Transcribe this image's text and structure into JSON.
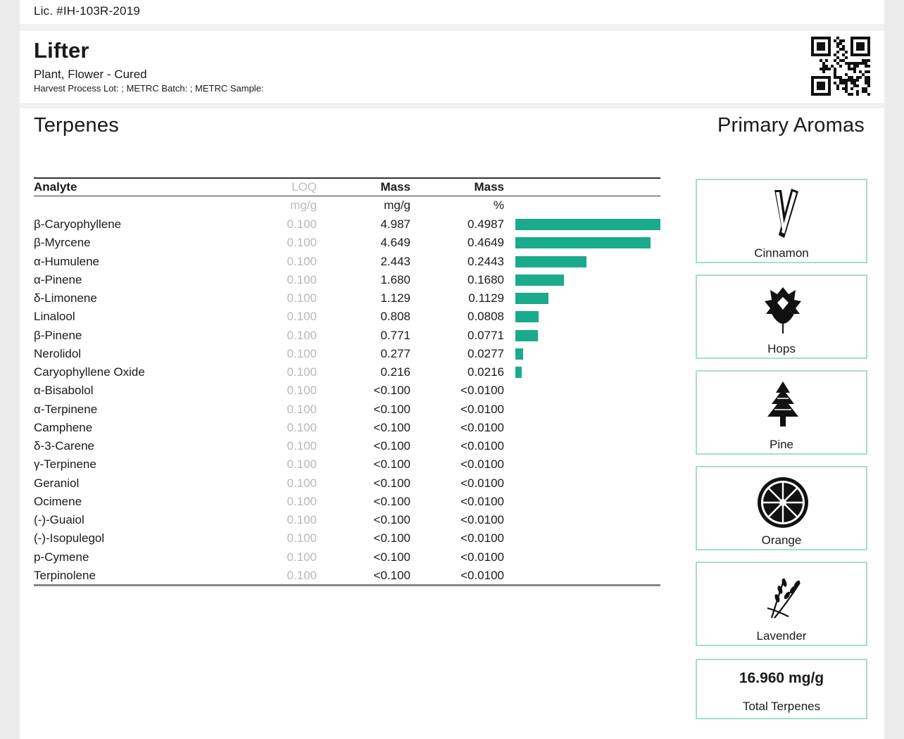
{
  "license": "Lic. #IH-103R-2019",
  "product": {
    "name": "Lifter",
    "type": "Plant, Flower - Cured",
    "lot_line": "Harvest Process Lot: ; METRC Batch: ; METRC Sample:"
  },
  "qr_icon": "qr-code",
  "terpenes": {
    "title": "Terpenes",
    "headers": {
      "analyte": "Analyte",
      "loq": "LOQ",
      "mass1": "Mass",
      "mass2": "Mass"
    },
    "units": {
      "loq": "mg/g",
      "mass1": "mg/g",
      "mass2": "%"
    },
    "bar_color": "#1aab8a",
    "rows": [
      {
        "name": "β-Caryophyllene",
        "loq": "0.100",
        "mg": "4.987",
        "pct": "0.4987",
        "fraction": 0.4987
      },
      {
        "name": "β-Myrcene",
        "loq": "0.100",
        "mg": "4.649",
        "pct": "0.4649",
        "fraction": 0.4649
      },
      {
        "name": "α-Humulene",
        "loq": "0.100",
        "mg": "2.443",
        "pct": "0.2443",
        "fraction": 0.2443
      },
      {
        "name": "α-Pinene",
        "loq": "0.100",
        "mg": "1.680",
        "pct": "0.1680",
        "fraction": 0.168
      },
      {
        "name": "δ-Limonene",
        "loq": "0.100",
        "mg": "1.129",
        "pct": "0.1129",
        "fraction": 0.1129
      },
      {
        "name": "Linalool",
        "loq": "0.100",
        "mg": "0.808",
        "pct": "0.0808",
        "fraction": 0.0808
      },
      {
        "name": "β-Pinene",
        "loq": "0.100",
        "mg": "0.771",
        "pct": "0.0771",
        "fraction": 0.0771
      },
      {
        "name": "Nerolidol",
        "loq": "0.100",
        "mg": "0.277",
        "pct": "0.0277",
        "fraction": 0.0277
      },
      {
        "name": "Caryophyllene Oxide",
        "loq": "0.100",
        "mg": "0.216",
        "pct": "0.0216",
        "fraction": 0.0216
      },
      {
        "name": "α-Bisabolol",
        "loq": "0.100",
        "mg": "<0.100",
        "pct": "<0.0100",
        "fraction": 0
      },
      {
        "name": "α-Terpinene",
        "loq": "0.100",
        "mg": "<0.100",
        "pct": "<0.0100",
        "fraction": 0
      },
      {
        "name": "Camphene",
        "loq": "0.100",
        "mg": "<0.100",
        "pct": "<0.0100",
        "fraction": 0
      },
      {
        "name": "δ-3-Carene",
        "loq": "0.100",
        "mg": "<0.100",
        "pct": "<0.0100",
        "fraction": 0
      },
      {
        "name": "γ-Terpinene",
        "loq": "0.100",
        "mg": "<0.100",
        "pct": "<0.0100",
        "fraction": 0
      },
      {
        "name": "Geraniol",
        "loq": "0.100",
        "mg": "<0.100",
        "pct": "<0.0100",
        "fraction": 0
      },
      {
        "name": "Ocimene",
        "loq": "0.100",
        "mg": "<0.100",
        "pct": "<0.0100",
        "fraction": 0
      },
      {
        "name": "(-)-Guaiol",
        "loq": "0.100",
        "mg": "<0.100",
        "pct": "<0.0100",
        "fraction": 0
      },
      {
        "name": "(-)-Isopulegol",
        "loq": "0.100",
        "mg": "<0.100",
        "pct": "<0.0100",
        "fraction": 0
      },
      {
        "name": "p-Cymene",
        "loq": "0.100",
        "mg": "<0.100",
        "pct": "<0.0100",
        "fraction": 0
      },
      {
        "name": "Terpinolene",
        "loq": "0.100",
        "mg": "<0.100",
        "pct": "<0.0100",
        "fraction": 0
      }
    ]
  },
  "aromas": {
    "title": "Primary Aromas",
    "border_color": "#a7dccf",
    "items": [
      {
        "label": "Cinnamon",
        "icon": "cinnamon-icon"
      },
      {
        "label": "Hops",
        "icon": "hops-icon"
      },
      {
        "label": "Pine",
        "icon": "pine-icon"
      },
      {
        "label": "Orange",
        "icon": "orange-icon"
      },
      {
        "label": "Lavender",
        "icon": "lavender-icon"
      }
    ],
    "total": {
      "value": "16.960 mg/g",
      "label": "Total Terpenes"
    }
  }
}
